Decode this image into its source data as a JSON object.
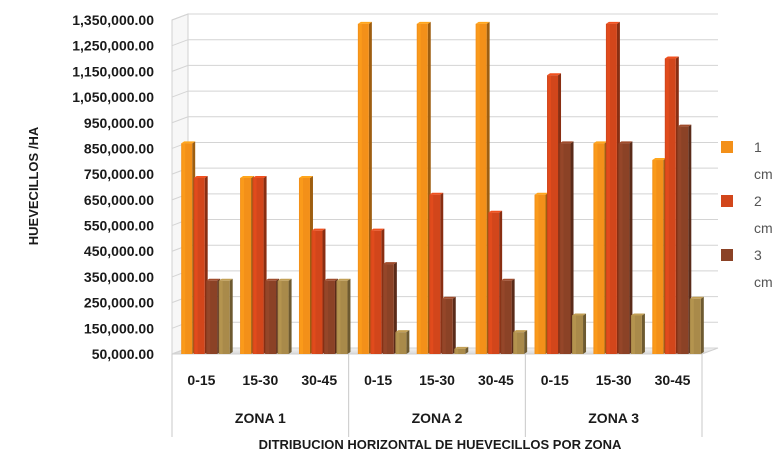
{
  "chart_data": {
    "type": "bar",
    "ylabel": "HUEVECILLOS /HA",
    "xlabel": "DITRIBUCION HORIZONTAL DE HUEVECILLOS POR ZONA",
    "ylim": [
      50000,
      1350000
    ],
    "yticks": [
      "1,350,000.00",
      "1,250,000.00",
      "1,150,000.00",
      "1,050,000.00",
      "950,000.00",
      "850,000.00",
      "750,000.00",
      "650,000.00",
      "550,000.00",
      "450,000.00",
      "350,000.00",
      "250,000.00",
      "150,000.00",
      "50,000.00"
    ],
    "categories": [
      "0-15",
      "15-30",
      "30-45",
      "0-15",
      "15-30",
      "30-45",
      "0-15",
      "15-30",
      "30-45"
    ],
    "groups": [
      {
        "label": "ZONA 1",
        "span": 3
      },
      {
        "label": "ZONA 2",
        "span": 3
      },
      {
        "label": "ZONA 3",
        "span": 3
      }
    ],
    "series": [
      {
        "name": "1 cm",
        "color": "#f39019",
        "values": [
          870000,
          735000,
          735000,
          1335000,
          1335000,
          1335000,
          670000,
          870000,
          805000
        ]
      },
      {
        "name": "2 cm",
        "color": "#d2461b",
        "values": [
          735000,
          735000,
          530000,
          530000,
          670000,
          600000,
          1135000,
          1335000,
          1200000
        ]
      },
      {
        "name": "3 cm",
        "color": "#8b4226",
        "values": [
          335000,
          335000,
          335000,
          400000,
          265000,
          335000,
          870000,
          870000,
          935000
        ]
      },
      {
        "color": "#a98a4a",
        "values": [
          335000,
          335000,
          335000,
          135000,
          70000,
          135000,
          200000,
          200000,
          265000
        ]
      }
    ],
    "legend_position": "right",
    "grid": true
  }
}
